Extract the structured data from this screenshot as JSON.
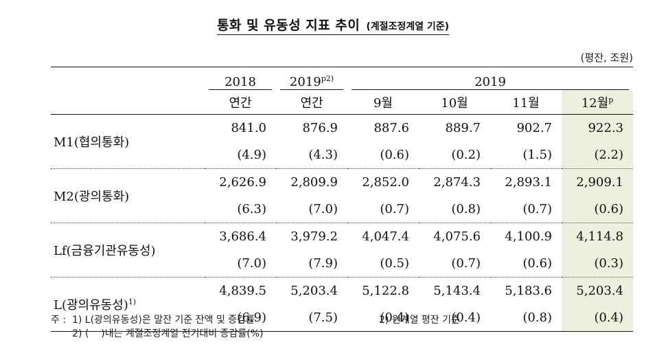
{
  "title": {
    "main": "통화 및 유동성 지표 추이",
    "sub": "(계절조정계열 기준)"
  },
  "unit": "(평잔, 조원)",
  "header": {
    "row1": [
      "2018",
      "2019",
      "2019"
    ],
    "row1_sup": "p2)",
    "row2": [
      "연간",
      "연간",
      "9월",
      "10월",
      "11월",
      "12월"
    ],
    "row2_sup": "p"
  },
  "rows": [
    {
      "label": "M1(협의통화)",
      "values": [
        "841.0",
        "876.9",
        "887.6",
        "889.7",
        "902.7",
        "922.3"
      ],
      "changes": [
        "(4.9)",
        "(4.3)",
        "(0.6)",
        "(0.2)",
        "(1.5)",
        "(2.2)"
      ]
    },
    {
      "label": "M2(광의통화)",
      "values": [
        "2,626.9",
        "2,809.9",
        "2,852.0",
        "2,874.3",
        "2,893.1",
        "2,909.1"
      ],
      "changes": [
        "(6.3)",
        "(7.0)",
        "(0.7)",
        "(0.8)",
        "(0.7)",
        "(0.6)"
      ]
    },
    {
      "label": "Lf(금융기관유동성)",
      "values": [
        "3,686.4",
        "3,979.2",
        "4,047.4",
        "4,075.6",
        "4,100.9",
        "4,114.8"
      ],
      "changes": [
        "(7.0)",
        "(7.9)",
        "(0.5)",
        "(0.7)",
        "(0.6)",
        "(0.3)"
      ]
    },
    {
      "label": "L(광의유동성)",
      "label_sup": "1)",
      "values": [
        "4,839.5",
        "5,203.4",
        "5,122.8",
        "5,143.4",
        "5,183.6",
        "5,203.4"
      ],
      "changes": [
        "(6.9)",
        "(7.5)",
        "(0.4)",
        "(0.4)",
        "(0.8)",
        "(0.4)"
      ]
    }
  ],
  "notes": {
    "line1": "주 :  1) L(광의유동성)은 말잔 기준 잔액 및 증감률",
    "line1b": "2) 원계열 평잔 기준",
    "line2": "       2) (    )내는 계절조정계열 전기대비 증감률(%)"
  },
  "colors": {
    "highlight": "#ebf1de"
  }
}
